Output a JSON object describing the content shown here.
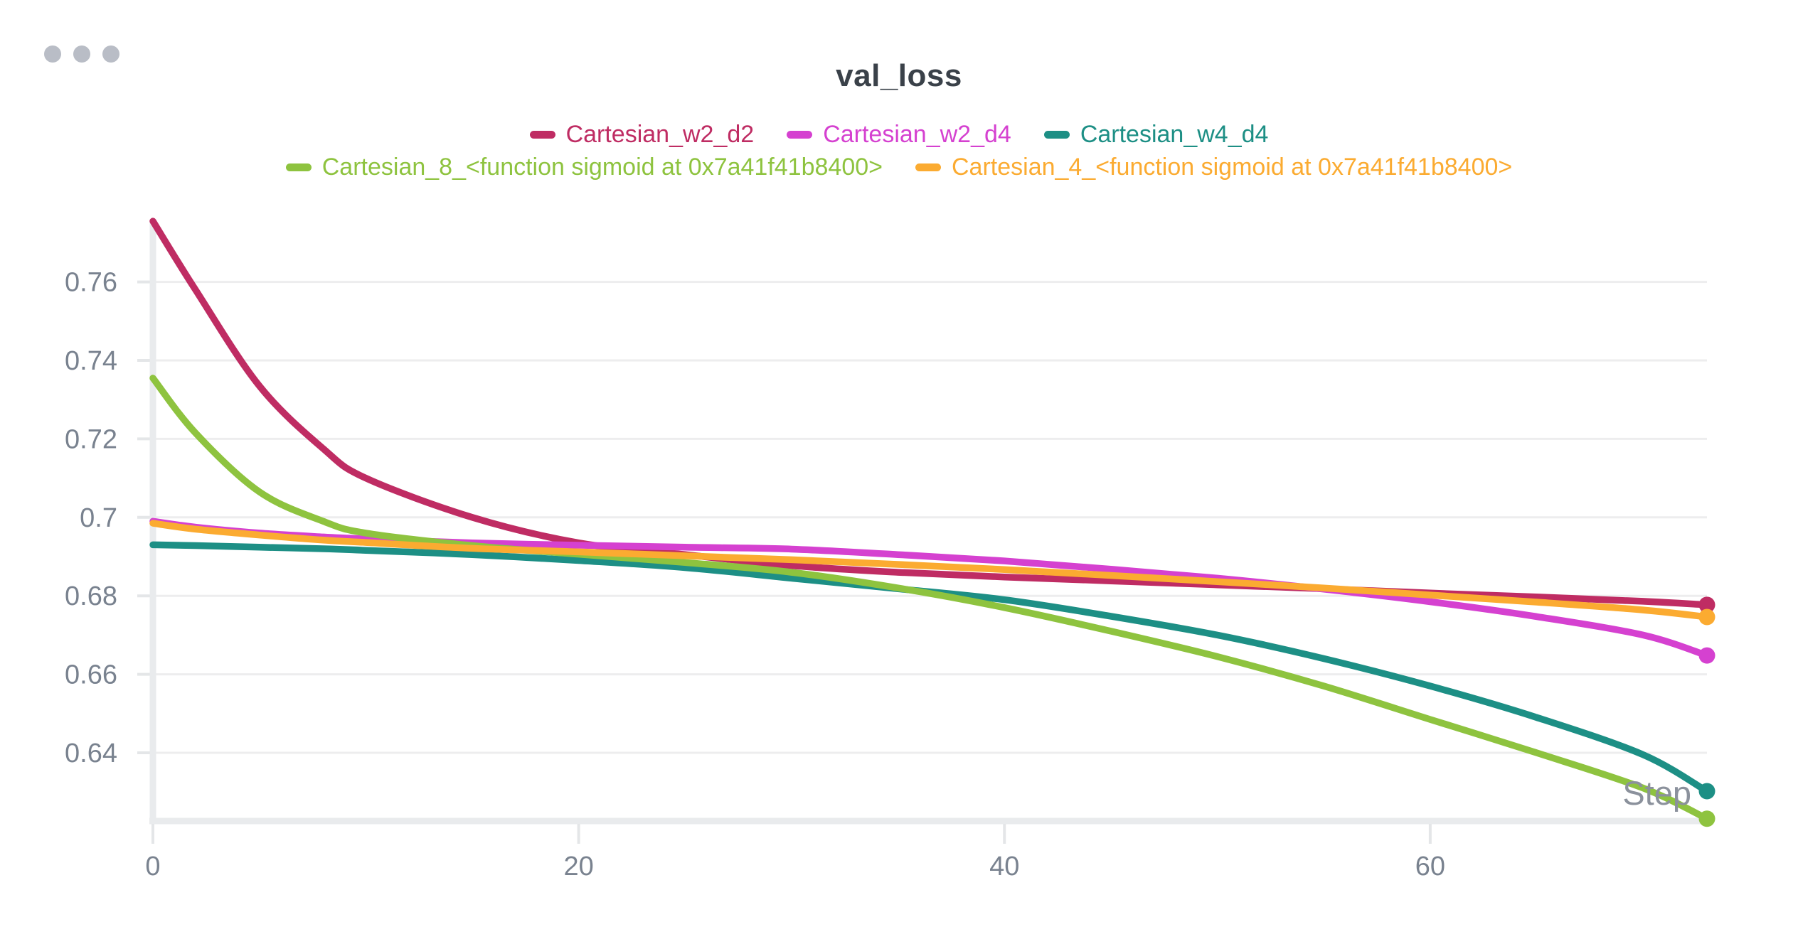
{
  "title": "val_loss",
  "window": {
    "dot_color": "#b9bdc6",
    "dot_count": 3
  },
  "axis_style": {
    "tick_label_color": "#79828f",
    "axis_line_color": "#e9ebed",
    "tick_mark_color": "#e4e6e8",
    "gridline_color": "#ededee",
    "step_label_color": "#8b919c",
    "title_color": "#3a4149"
  },
  "chart_data": {
    "type": "line",
    "title": "val_loss",
    "xlabel": "Step",
    "ylabel": "",
    "grid": "horizontal-only",
    "legend_position": "top",
    "xlim": [
      0,
      73
    ],
    "ylim": [
      0.6226,
      0.7757
    ],
    "x_ticks": [
      0,
      20,
      40,
      60
    ],
    "y_ticks": [
      0.64,
      0.66,
      0.68,
      0.7,
      0.72,
      0.74,
      0.76
    ],
    "x": [
      0,
      2,
      5,
      8,
      10,
      15,
      20,
      25,
      30,
      35,
      40,
      45,
      50,
      55,
      60,
      65,
      70,
      73
    ],
    "series": [
      {
        "name": "Cartesian_w2_d2",
        "color": "#bf2c63",
        "values": [
          0.7755,
          0.758,
          0.7335,
          0.7175,
          0.71,
          0.7,
          0.6935,
          0.6905,
          0.6877,
          0.686,
          0.6848,
          0.6838,
          0.6828,
          0.6818,
          0.6807,
          0.6797,
          0.6786,
          0.6777
        ]
      },
      {
        "name": "Cartesian_w2_d4",
        "color": "#d541d0",
        "values": [
          0.699,
          0.6975,
          0.696,
          0.695,
          0.6945,
          0.6935,
          0.6929,
          0.6924,
          0.6919,
          0.6905,
          0.6889,
          0.6868,
          0.6845,
          0.6817,
          0.6785,
          0.6747,
          0.67,
          0.6648
        ]
      },
      {
        "name": "Cartesian_w4_d4",
        "color": "#1d8f85",
        "values": [
          0.693,
          0.6928,
          0.6924,
          0.692,
          0.6916,
          0.6905,
          0.689,
          0.6872,
          0.6845,
          0.6818,
          0.679,
          0.6748,
          0.67,
          0.664,
          0.657,
          0.649,
          0.6395,
          0.6302
        ]
      },
      {
        "name": "Cartesian_8_<function sigmoid at 0x7a41f41b8400>",
        "color": "#8ec33f",
        "values": [
          0.7355,
          0.7215,
          0.7065,
          0.699,
          0.696,
          0.6928,
          0.6906,
          0.6885,
          0.686,
          0.682,
          0.677,
          0.671,
          0.6645,
          0.657,
          0.6485,
          0.64,
          0.631,
          0.6232
        ]
      },
      {
        "name": "Cartesian_4_<function sigmoid at 0x7a41f41b8400>",
        "color": "#fbab31",
        "values": [
          0.6985,
          0.697,
          0.6955,
          0.6942,
          0.6936,
          0.6921,
          0.6912,
          0.6902,
          0.6892,
          0.688,
          0.6867,
          0.6852,
          0.6836,
          0.682,
          0.6802,
          0.6784,
          0.6764,
          0.6746
        ]
      }
    ],
    "legend_rows": [
      [
        0,
        1,
        2
      ],
      [
        3,
        4
      ]
    ],
    "end_markers": true
  }
}
